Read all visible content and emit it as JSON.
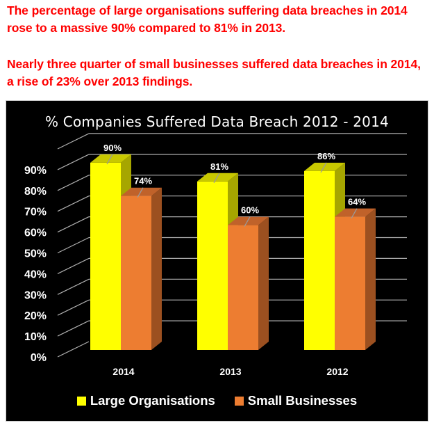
{
  "headlines": {
    "line1": "The percentage of large organisations suffering data breaches in 2014 rose to a massive 90% compared to 81% in 2013.",
    "line2": "Nearly three quarter of small businesses suffered data breaches in 2014, a rise of 23% over 2013 findings."
  },
  "colors": {
    "headline": "#ff0000",
    "background": "#000000",
    "large_front": "#ffff00",
    "large_top": "#c8c800",
    "large_side": "#a6a600",
    "small_front": "#ed7d31",
    "small_top": "#c0622a",
    "small_side": "#9c5020",
    "grid": "#b0b0b0"
  },
  "chart_data": {
    "type": "bar",
    "subtype": "3d-clustered-column",
    "title": "% Companies Suffered Data Breach 2012 - 2014",
    "categories": [
      "2014",
      "2013",
      "2012"
    ],
    "series": [
      {
        "name": "Large Organisations",
        "values": [
          90,
          81,
          86
        ],
        "labels": [
          "90%",
          "81%",
          "86%"
        ],
        "color": "#ffff00"
      },
      {
        "name": "Small Businesses",
        "values": [
          74,
          60,
          64
        ],
        "labels": [
          "74%",
          "60%",
          "64%"
        ],
        "color": "#ed7d31"
      }
    ],
    "xlabel": "",
    "ylabel": "",
    "ylim": [
      0,
      90
    ],
    "yticks": [
      "0%",
      "10%",
      "20%",
      "30%",
      "40%",
      "50%",
      "60%",
      "70%",
      "80%",
      "90%"
    ],
    "grid": true,
    "legend_position": "bottom"
  },
  "legend": {
    "items": [
      {
        "label": "Large Organisations",
        "color": "#ffff00"
      },
      {
        "label": "Small Businesses",
        "color": "#ed7d31"
      }
    ]
  }
}
